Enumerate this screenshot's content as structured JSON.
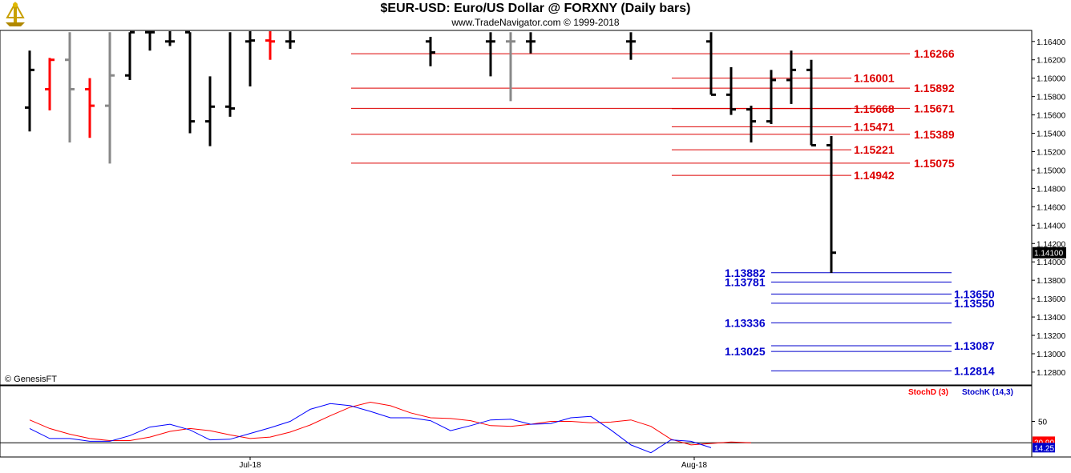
{
  "header": {
    "title": "$EUR-USD:  Euro/US Dollar @ FORXNY  (Daily bars)",
    "subtitle": "www.TradeNavigator.com © 1999-2018",
    "copyright": "© GenesisFT"
  },
  "chart_data": {
    "type": "bar",
    "price_axis": {
      "ylim": [
        1.1266,
        1.1652
      ],
      "ticks": [
        "1.16400",
        "1.16200",
        "1.16000",
        "1.15800",
        "1.15600",
        "1.15400",
        "1.15200",
        "1.15000",
        "1.14800",
        "1.14600",
        "1.14400",
        "1.14200",
        "1.14000",
        "1.13800",
        "1.13600",
        "1.13400",
        "1.13200",
        "1.13000",
        "1.12800"
      ],
      "last_price": "1.14100"
    },
    "ohlc_bars": [
      {
        "high": 1.163,
        "low": 1.1542,
        "open": 1.1568,
        "close": 1.1609,
        "color": "#000000"
      },
      {
        "high": 1.1622,
        "low": 1.1565,
        "open": 1.1588,
        "close": 1.162,
        "color": "#ff0000"
      },
      {
        "high": 1.165,
        "low": 1.153,
        "open": 1.162,
        "close": 1.1588,
        "color": "#888888"
      },
      {
        "high": 1.16,
        "low": 1.1535,
        "open": 1.1588,
        "close": 1.157,
        "color": "#ff0000"
      },
      {
        "high": 1.165,
        "low": 1.1507,
        "open": 1.157,
        "close": 1.1603,
        "color": "#888888"
      },
      {
        "high": 1.165,
        "low": 1.1598,
        "open": 1.1603,
        "close": 1.165,
        "color": "#000000"
      },
      {
        "high": 1.166,
        "low": 1.163,
        "open": 1.165,
        "close": 1.165,
        "color": "#000000"
      },
      {
        "high": 1.166,
        "low": 1.1635,
        "open": 1.164,
        "close": 1.164,
        "color": "#000000"
      },
      {
        "high": 1.165,
        "low": 1.154,
        "open": 1.165,
        "close": 1.1553,
        "color": "#000000"
      },
      {
        "high": 1.1602,
        "low": 1.1526,
        "open": 1.1553,
        "close": 1.1569,
        "color": "#000000"
      },
      {
        "high": 1.165,
        "low": 1.1558,
        "open": 1.1569,
        "close": 1.1567,
        "color": "#000000"
      },
      {
        "high": 1.166,
        "low": 1.1591,
        "open": 1.164,
        "close": 1.1641,
        "color": "#000000"
      },
      {
        "high": 1.166,
        "low": 1.162,
        "open": 1.1641,
        "close": 1.164,
        "color": "#ff0000"
      },
      {
        "high": 1.166,
        "low": 1.1632,
        "open": 1.164,
        "close": 1.164,
        "color": "#000000"
      },
      {
        "high": 1.1645,
        "low": 1.1613,
        "open": 1.164,
        "close": 1.1628,
        "color": "#000000"
      },
      {
        "high": 1.165,
        "low": 1.1602,
        "open": 1.164,
        "close": 1.164,
        "color": "#000000"
      },
      {
        "high": 1.165,
        "low": 1.1575,
        "open": 1.164,
        "close": 1.164,
        "color": "#888888"
      },
      {
        "high": 1.165,
        "low": 1.1627,
        "open": 1.164,
        "close": 1.164,
        "color": "#000000"
      },
      {
        "high": 1.165,
        "low": 1.162,
        "open": 1.164,
        "close": 1.164,
        "color": "#000000"
      },
      {
        "high": 1.165,
        "low": 1.1582,
        "open": 1.164,
        "close": 1.1582,
        "color": "#000000"
      },
      {
        "high": 1.1612,
        "low": 1.156,
        "open": 1.1582,
        "close": 1.1566,
        "color": "#000000"
      },
      {
        "high": 1.157,
        "low": 1.153,
        "open": 1.1566,
        "close": 1.1553,
        "color": "#000000"
      },
      {
        "high": 1.1609,
        "low": 1.155,
        "open": 1.1553,
        "close": 1.1598,
        "color": "#000000"
      },
      {
        "high": 1.163,
        "low": 1.1572,
        "open": 1.1598,
        "close": 1.1609,
        "color": "#000000"
      },
      {
        "high": 1.162,
        "low": 1.1527,
        "open": 1.1609,
        "close": 1.1527,
        "color": "#000000"
      },
      {
        "high": 1.1537,
        "low": 1.1388,
        "open": 1.1527,
        "close": 1.141,
        "color": "#000000"
      }
    ],
    "resistance_levels": [
      "1.16266",
      "1.16001",
      "1.15892",
      "1.15668",
      "1.15671",
      "1.15471",
      "1.15389",
      "1.15221",
      "1.15075",
      "1.14942"
    ],
    "support_levels": [
      "1.13882",
      "1.13781",
      "1.13650",
      "1.13550",
      "1.13336",
      "1.13087",
      "1.13025",
      "1.12814"
    ],
    "x_labels": [
      "Jul-18",
      "Aug-18"
    ],
    "stochastic": {
      "legend": [
        "StochD (3)",
        "StochK (14,3)"
      ],
      "level_label": "50",
      "d_value": "20.90",
      "k_value": "14.25",
      "ylim": [
        0,
        100
      ],
      "series": [
        {
          "name": "StochD (3)",
          "color": "#ff0000",
          "values": [
            52,
            40,
            32,
            26,
            23,
            23,
            28,
            36,
            40,
            37,
            31,
            26,
            28,
            35,
            45,
            58,
            70,
            77,
            72,
            62,
            55,
            54,
            51,
            44,
            43,
            46,
            50,
            50,
            48,
            49,
            52,
            43,
            25,
            17,
            19,
            21,
            20
          ]
        },
        {
          "name": "StochK (14,3)",
          "color": "#0000ff",
          "values": [
            40,
            26,
            26,
            22,
            22,
            30,
            42,
            46,
            38,
            24,
            25,
            33,
            41,
            50,
            67,
            75,
            72,
            64,
            55,
            55,
            51,
            37,
            44,
            52,
            53,
            46,
            47,
            55,
            57,
            38,
            17,
            6,
            24,
            22,
            13
          ]
        }
      ]
    },
    "colors": {
      "resistance": "#dd0000",
      "support": "#0000cc",
      "axis_text": "#000000",
      "last_price_bg": "#000000"
    }
  }
}
